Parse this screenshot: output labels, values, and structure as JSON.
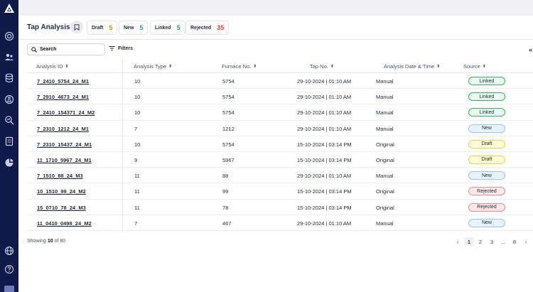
{
  "header": {
    "title": "Tap Analysis"
  },
  "chips": [
    {
      "label": "Draft",
      "count": "5",
      "color": "#f08c00"
    },
    {
      "label": "New",
      "count": "5",
      "color": "#2f8fd8"
    },
    {
      "label": "Linked",
      "count": "5",
      "color": "#27a844"
    },
    {
      "label": "Rejected",
      "count": "35",
      "color": "#e8421c"
    }
  ],
  "toolbar": {
    "search_placeholder": "Search",
    "filters_label": "Filters"
  },
  "table": {
    "headers": [
      "Analysis ID",
      "Analysis Type",
      "Furnace No.",
      "Tap No.",
      "Analysis Date & Time",
      "Source"
    ],
    "rows": [
      {
        "id": "7_2410_5754_24_M1",
        "type": "10",
        "furnace": "5754",
        "tap": "29-10-2024 | 01:10 AM",
        "date": "Manual",
        "source": "Linked"
      },
      {
        "id": "7_2910_4673_24_M1",
        "type": "10",
        "furnace": "5754",
        "tap": "29-10-2024 | 01:10 AM",
        "date": "Manual",
        "source": "Linked"
      },
      {
        "id": "7_2410_154371_24_M2",
        "type": "10",
        "furnace": "5754",
        "tap": "29-10-2024 | 01:10 AM",
        "date": "Manual",
        "source": "Linked"
      },
      {
        "id": "7_2310_1212_24_M1",
        "type": "7",
        "furnace": "1212",
        "tap": "29-10-2024 | 01:10 AM",
        "date": "Manual",
        "source": "New"
      },
      {
        "id": "7_2310_15437_24_M1",
        "type": "10",
        "furnace": "5754",
        "tap": "15-10-2024 | 03:14 PM",
        "date": "Original",
        "source": "Draft"
      },
      {
        "id": "11_1710_5967_24_M1",
        "type": "9",
        "furnace": "5967",
        "tap": "15-10-2024 | 03:14 PM",
        "date": "Original",
        "source": "Draft"
      },
      {
        "id": "7_1510_88_24_M3",
        "type": "11",
        "furnace": "88",
        "tap": "29-10-2024 | 01:10 AM",
        "date": "Manual",
        "source": "New"
      },
      {
        "id": "10_1510_99_24_M2",
        "type": "11",
        "furnace": "99",
        "tap": "15-10-2024 | 03:14 PM",
        "date": "Original",
        "source": "Rejected"
      },
      {
        "id": "15_0710_78_24_M3",
        "type": "11",
        "furnace": "78",
        "tap": "15-10-2024 | 03:14 PM",
        "date": "Original",
        "source": "Rejected"
      },
      {
        "id": "11_0410_0498_24_M2",
        "type": "7",
        "furnace": "467",
        "tap": "29-10-2024 | 01:10 AM",
        "date": "Manual",
        "source": "New"
      }
    ]
  },
  "badge_styles": {
    "Linked": {
      "bg": "#eafaf0",
      "border": "#34b55a",
      "text": "#1f2937"
    },
    "New": {
      "bg": "#e8f2fc",
      "border": "#9cc6ec",
      "text": "#1f2937"
    },
    "Draft": {
      "bg": "#fffbd6",
      "border": "#e9d84a",
      "text": "#1f2937"
    },
    "Rejected": {
      "bg": "#fde9ea",
      "border": "#ef8a90",
      "text": "#1f2937"
    }
  },
  "footer": {
    "prefix": "Showing",
    "shown": "10",
    "middle": "of",
    "total": "80"
  },
  "pagination": {
    "pages": [
      "1",
      "2",
      "3",
      "...",
      "8"
    ],
    "active": "1"
  },
  "sidebar_icons": [
    "target-icon",
    "users-icon",
    "database-icon",
    "globe-flask-icon",
    "search-analytics-icon",
    "report-icon",
    "chart-gear-icon",
    "globe-icon",
    "help-icon"
  ]
}
